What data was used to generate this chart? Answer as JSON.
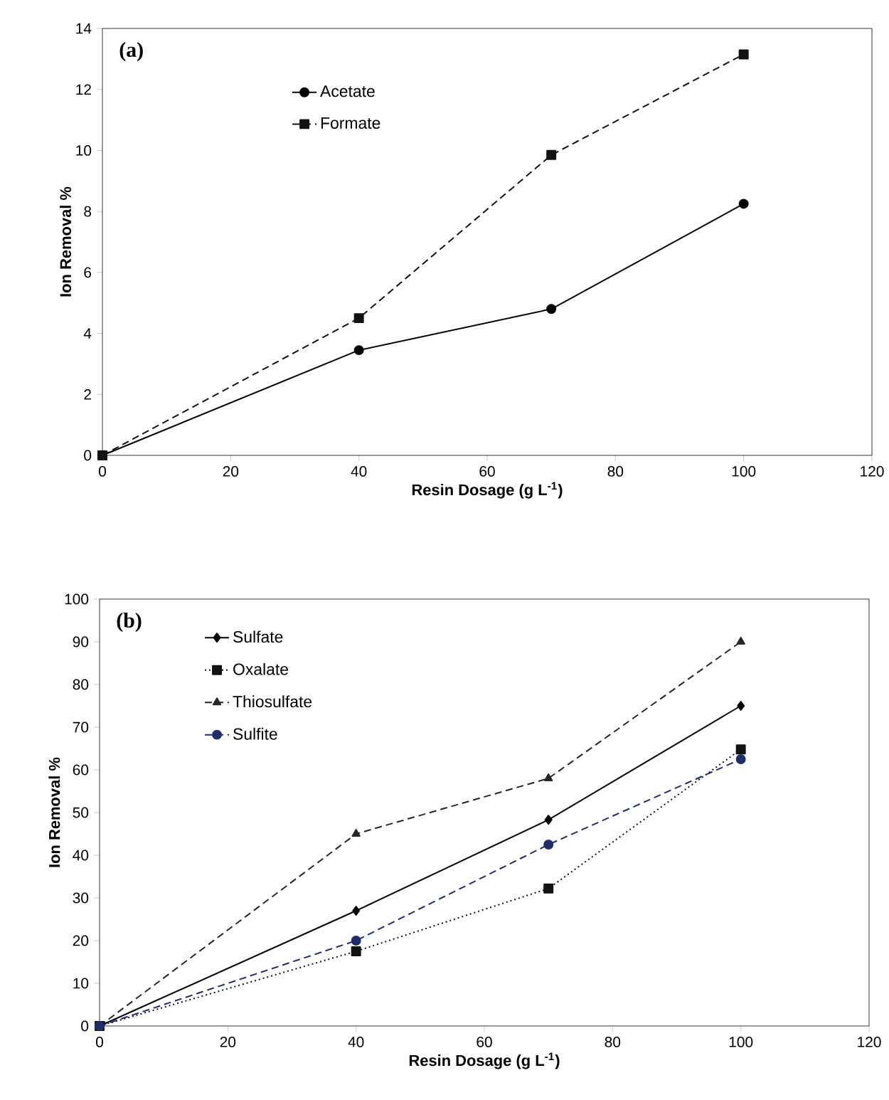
{
  "chart_data": [
    {
      "type": "line",
      "annotations": [
        "(a)"
      ],
      "xlabel": "Resin Dosage (g L$^{-1}$)",
      "ylabel": "Ion Removal %",
      "x": [
        0,
        40,
        70,
        100
      ],
      "xlim": [
        0,
        120
      ],
      "xticks": [
        0,
        20,
        40,
        60,
        80,
        100,
        120
      ],
      "ylim": [
        0,
        14
      ],
      "yticks": [
        0,
        2,
        4,
        6,
        8,
        10,
        12,
        14
      ],
      "legend": "top",
      "grid": false,
      "series": [
        {
          "name": "Acetate",
          "color": "#000000",
          "marker": "circle",
          "line_style": "solid",
          "values": [
            0,
            3.45,
            4.8,
            8.25
          ]
        },
        {
          "name": "Formate",
          "color": "#121212",
          "marker": "square",
          "line_style": "dashed",
          "values": [
            0,
            4.5,
            9.85,
            13.15
          ]
        }
      ]
    },
    {
      "type": "line",
      "annotations": [
        "(b)"
      ],
      "xlabel": "Resin Dosage (g L$^{-1}$)",
      "ylabel": "Ion Removal %",
      "x": [
        0,
        40,
        70,
        100
      ],
      "xlim": [
        0,
        120
      ],
      "xticks": [
        0,
        20,
        40,
        60,
        80,
        100,
        120
      ],
      "ylim": [
        0,
        100
      ],
      "yticks": [
        0,
        10,
        20,
        30,
        40,
        50,
        60,
        70,
        80,
        90,
        100
      ],
      "legend": "top left",
      "grid": false,
      "series": [
        {
          "name": "Sulfate",
          "color": "#000000",
          "marker": "diamond",
          "line_style": "solid",
          "values": [
            0,
            27,
            48.3,
            75
          ]
        },
        {
          "name": "Oxalate",
          "color": "#121212",
          "marker": "square",
          "line_style": "dotted",
          "values": [
            0,
            17.5,
            32.2,
            64.8
          ]
        },
        {
          "name": "Thiosulfate",
          "color": "#262626",
          "marker": "triangle",
          "line_style": "dashed",
          "values": [
            0,
            45,
            58,
            90
          ]
        },
        {
          "name": "Sulfite",
          "color": "#1f2d6e",
          "marker": "circle",
          "line_style": "dashed",
          "values": [
            0,
            20,
            42.5,
            62.5
          ]
        }
      ]
    }
  ]
}
